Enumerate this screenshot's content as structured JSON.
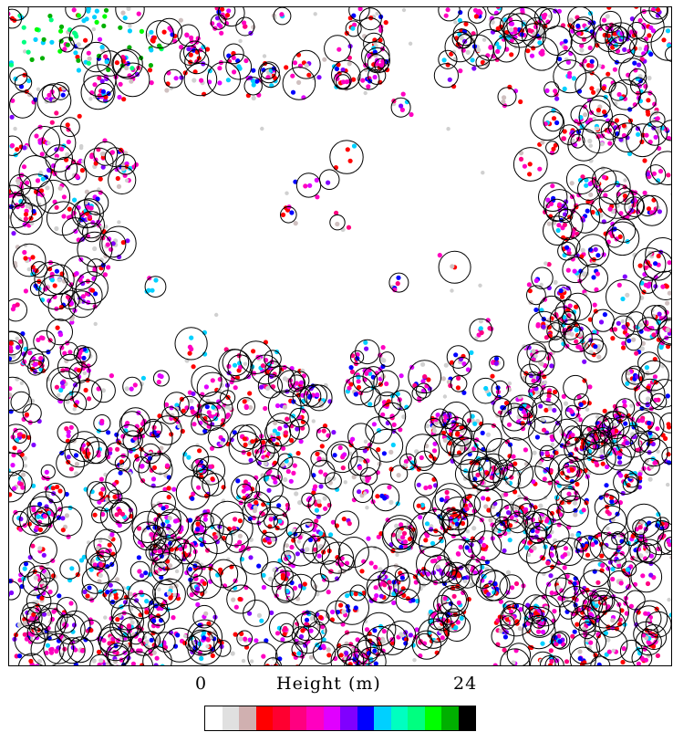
{
  "legend": {
    "min_label": "0",
    "title": "Height (m)",
    "max_label": "24",
    "colors": [
      "#ffffff",
      "#e0e0e0",
      "#d0b0b0",
      "#ff0000",
      "#ff0030",
      "#ff0080",
      "#ff00c0",
      "#e000ff",
      "#8000ff",
      "#0000ff",
      "#00d0ff",
      "#00ffc0",
      "#00ff80",
      "#00ff00",
      "#00b000",
      "#000000"
    ]
  },
  "map": {
    "point_colors": [
      "#ff00c0",
      "#ff00c0",
      "#ff00c0",
      "#ff0080",
      "#ff0000",
      "#ff0000",
      "#e000ff",
      "#8000ff",
      "#0000ff",
      "#00d0ff",
      "#cfc0c0",
      "#d0d0d0"
    ]
  }
}
